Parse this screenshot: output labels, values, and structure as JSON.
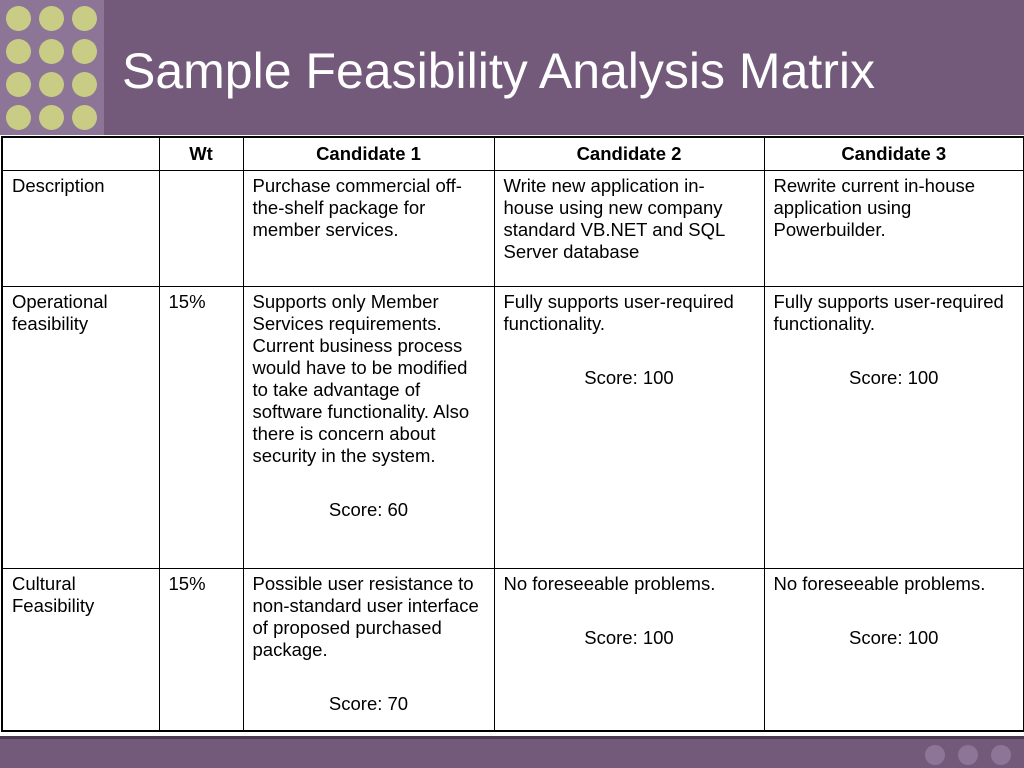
{
  "slide": {
    "title": "Sample Feasibility Analysis Matrix",
    "colors": {
      "header": "#735a7b",
      "dots": "#c9cc85",
      "dot_panel": "#8c7596"
    }
  },
  "table": {
    "headers": [
      "",
      "Wt",
      "Candidate 1",
      "Candidate 2",
      "Candidate 3"
    ],
    "rows": [
      {
        "label": "Description",
        "weight": "",
        "c1": {
          "text": "Purchase commercial off-the-shelf package for member services.",
          "score": ""
        },
        "c2": {
          "text": "Write new application in-house using new company standard VB.NET and SQL Server database",
          "score": ""
        },
        "c3": {
          "text": "Rewrite current in-house application using Powerbuilder.",
          "score": ""
        }
      },
      {
        "label": "Operational feasibility",
        "weight": "15%",
        "c1": {
          "text": "Supports only Member Services requirements. Current business process would have to be modified to take advantage of software functionality. Also there is concern about security in the system.",
          "score": "Score: 60"
        },
        "c2": {
          "text": "Fully supports user-required functionality.",
          "score": "Score: 100"
        },
        "c3": {
          "text": "Fully supports user-required functionality.",
          "score": "Score: 100"
        }
      },
      {
        "label": "Cultural Feasibility",
        "weight": "15%",
        "c1": {
          "text": "Possible user resistance to non-standard user interface of proposed purchased package.",
          "score": "Score: 70"
        },
        "c2": {
          "text": "No foreseeable problems.",
          "score": "Score: 100"
        },
        "c3": {
          "text": "No foreseeable problems.",
          "score": "Score: 100"
        }
      }
    ]
  }
}
